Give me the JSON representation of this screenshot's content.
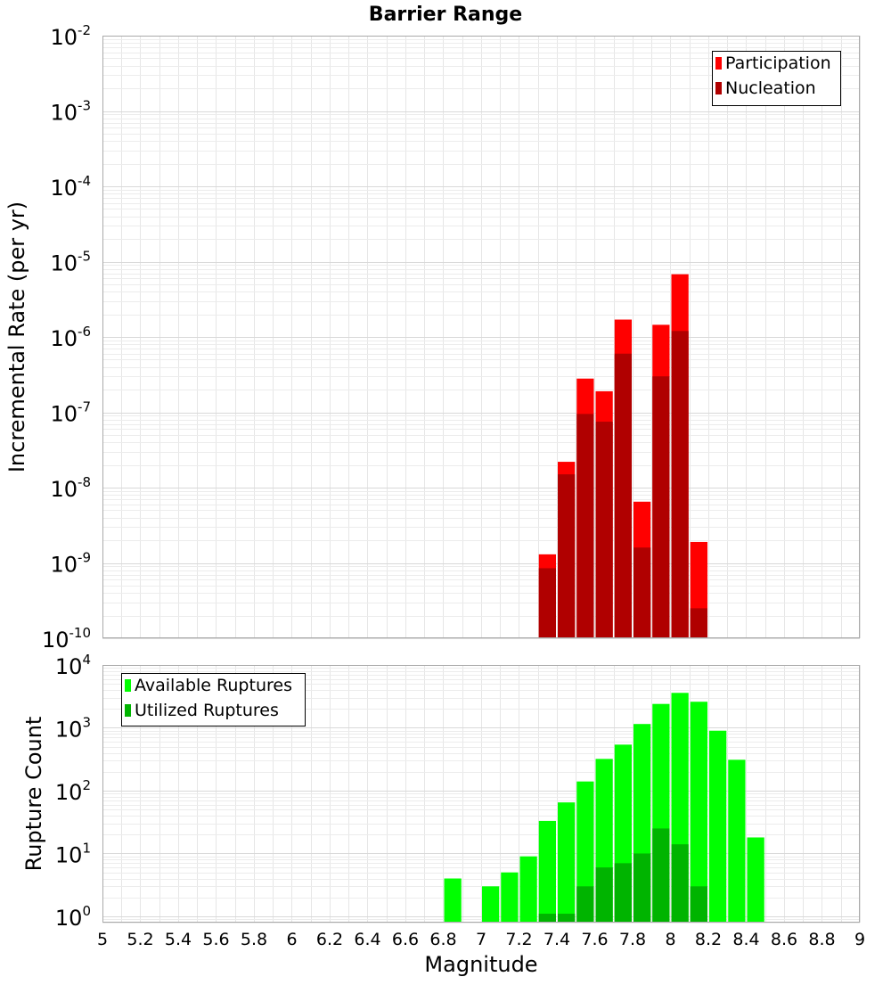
{
  "chart_data": [
    {
      "type": "bar",
      "title": "Barrier Range",
      "xlabel": "",
      "ylabel": "Incremental Rate (per yr)",
      "yscale": "log",
      "ylim_exp": [
        -10,
        -2
      ],
      "y_ticks": [
        {
          "base": "10",
          "exp": "-10"
        },
        {
          "base": "10",
          "exp": "-9"
        },
        {
          "base": "10",
          "exp": "-8"
        },
        {
          "base": "10",
          "exp": "-7"
        },
        {
          "base": "10",
          "exp": "-6"
        },
        {
          "base": "10",
          "exp": "-5"
        },
        {
          "base": "10",
          "exp": "-4"
        },
        {
          "base": "10",
          "exp": "-3"
        },
        {
          "base": "10",
          "exp": "-2"
        }
      ],
      "xlim": [
        5,
        9
      ],
      "grid": true,
      "legend_position": "top-right",
      "series": [
        {
          "name": "Participation",
          "color": "#ff0000",
          "x": [
            7.35,
            7.45,
            7.55,
            7.65,
            7.75,
            7.85,
            7.95,
            8.05,
            8.15
          ],
          "values": [
            1.3e-09,
            2.2e-08,
            2.8e-07,
            1.9e-07,
            1.7e-06,
            6.5e-09,
            1.45e-06,
            6.8e-06,
            1.9e-09
          ]
        },
        {
          "name": "Nucleation",
          "color": "#b00000",
          "x": [
            7.35,
            7.45,
            7.55,
            7.65,
            7.75,
            7.85,
            7.95,
            8.05,
            8.15
          ],
          "values": [
            8.5e-10,
            1.5e-08,
            9.5e-08,
            7.5e-08,
            6e-07,
            1.6e-09,
            3e-07,
            1.2e-06,
            2.5e-10
          ]
        }
      ]
    },
    {
      "type": "bar",
      "title": "",
      "xlabel": "Magnitude",
      "ylabel": "Rupture Count",
      "yscale": "log",
      "ylim_exp": [
        -0.1,
        4
      ],
      "y_ticks": [
        {
          "base": "10",
          "exp": "0"
        },
        {
          "base": "10",
          "exp": "1"
        },
        {
          "base": "10",
          "exp": "2"
        },
        {
          "base": "10",
          "exp": "3"
        },
        {
          "base": "10",
          "exp": "4"
        }
      ],
      "xlim": [
        5,
        9
      ],
      "x_ticks": [
        "5",
        "5.2",
        "5.4",
        "5.6",
        "5.8",
        "6",
        "6.2",
        "6.4",
        "6.6",
        "6.8",
        "7",
        "7.2",
        "7.4",
        "7.6",
        "7.8",
        "8",
        "8.2",
        "8.4",
        "8.6",
        "8.8",
        "9"
      ],
      "grid": true,
      "legend_position": "top-left",
      "series": [
        {
          "name": "Available Ruptures",
          "color": "#00ff00",
          "x": [
            6.85,
            7.05,
            7.15,
            7.25,
            7.35,
            7.45,
            7.55,
            7.65,
            7.75,
            7.85,
            7.95,
            8.05,
            8.15,
            8.25,
            8.35,
            8.45
          ],
          "values": [
            4,
            3,
            5,
            9,
            33,
            65,
            140,
            320,
            540,
            1150,
            2400,
            3600,
            2600,
            900,
            310,
            18
          ]
        },
        {
          "name": "Utilized Ruptures",
          "color": "#00b400",
          "x": [
            7.35,
            7.45,
            7.55,
            7.65,
            7.75,
            7.85,
            7.95,
            8.05,
            8.15
          ],
          "values": [
            1.1,
            1.1,
            3,
            6,
            7,
            10,
            25,
            14,
            3
          ]
        }
      ]
    }
  ]
}
